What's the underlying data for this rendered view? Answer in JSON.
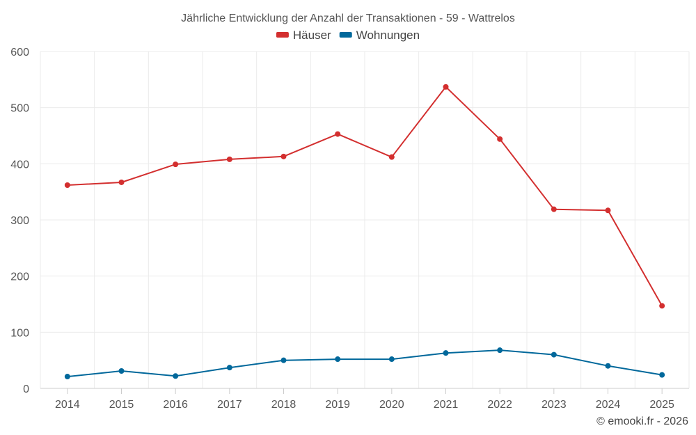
{
  "chart_data": {
    "type": "line",
    "title": "Jährliche Entwicklung der Anzahl der Transaktionen - 59 - Wattrelos",
    "categories": [
      "2014",
      "2015",
      "2016",
      "2017",
      "2018",
      "2019",
      "2020",
      "2021",
      "2022",
      "2023",
      "2024",
      "2025"
    ],
    "ylim": [
      0,
      600
    ],
    "yticks": [
      0,
      100,
      200,
      300,
      400,
      500,
      600
    ],
    "grid": true,
    "legend_position": "top-center",
    "series": [
      {
        "name": "Häuser",
        "color": "#d32f2f",
        "values": [
          362,
          367,
          399,
          408,
          413,
          453,
          412,
          537,
          444,
          319,
          317,
          147
        ]
      },
      {
        "name": "Wohnungen",
        "color": "#01689b",
        "values": [
          21,
          31,
          22,
          37,
          50,
          52,
          52,
          63,
          68,
          60,
          40,
          24
        ]
      }
    ],
    "xlabel": "",
    "ylabel": ""
  },
  "credit": "© emooki.fr - 2026"
}
